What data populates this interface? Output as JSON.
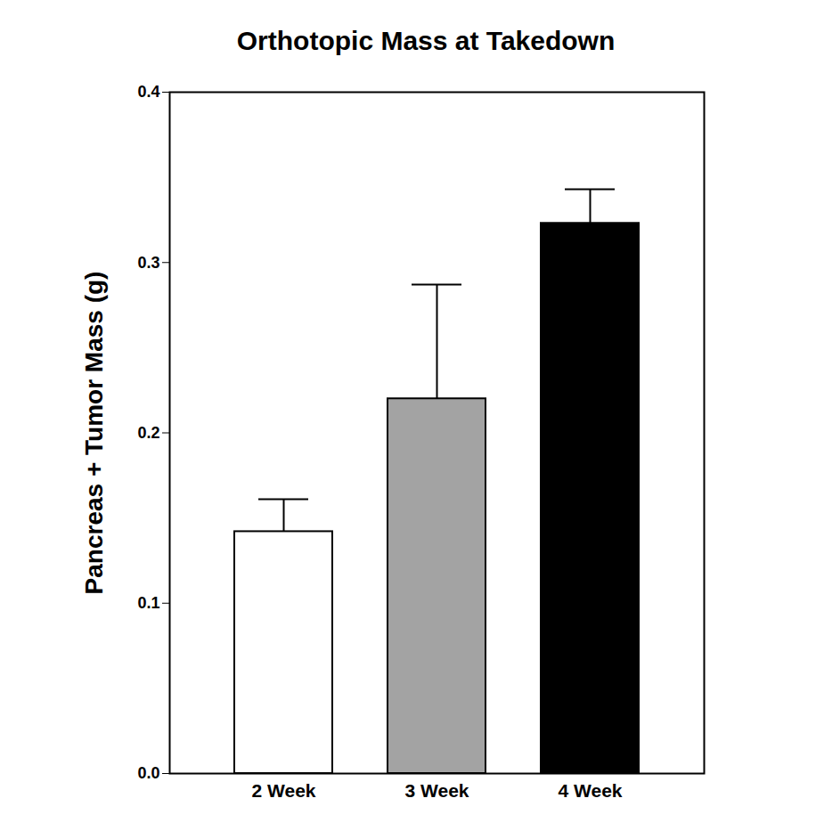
{
  "chart_data": {
    "type": "bar",
    "title": "Orthotopic Mass at Takedown",
    "y_label": "Pancreas + Tumor Mass (g)",
    "categories": [
      "2 Week",
      "3 Week",
      "4 Week"
    ],
    "values": [
      0.142,
      0.22,
      0.323
    ],
    "errors": [
      0.019,
      0.067,
      0.02
    ],
    "colors": [
      "#ffffff",
      "#a3a3a3",
      "#000000"
    ],
    "ylim": [
      0,
      0.4
    ],
    "yticks": [
      {
        "value": 0,
        "label": "0.0"
      },
      0.1,
      0.2,
      0.3,
      0.4
    ],
    "grid": false
  }
}
